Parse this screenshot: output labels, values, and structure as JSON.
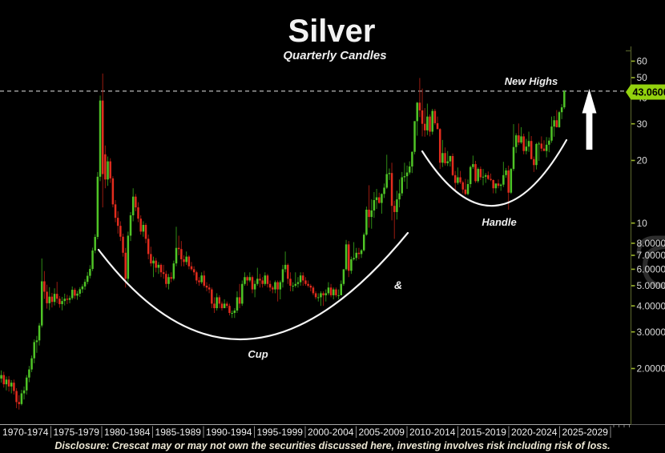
{
  "title": "Silver",
  "subtitle": "Quarterly Candles",
  "annotations": {
    "new_highs": "New Highs",
    "cup": "Cup",
    "ampersand": "&",
    "handle": "Handle"
  },
  "price_tag": {
    "value": "43.0600"
  },
  "disclosure": "Disclosure: Crescat may or may not own the securities discussed here, investing involves risk including risk of loss.",
  "colors": {
    "background": "#000000",
    "up": "#4fc426",
    "down": "#e22c1d",
    "up_wick": "#2f8c16",
    "down_wick": "#9a1b10",
    "price_tag": "#93d20e",
    "axis_tick": "#9ab32a",
    "axis_line": "#4a5424",
    "axis_text": "#d9d9d9",
    "x_text": "#f0f0f0",
    "dashed_line": "#e8e8e8"
  },
  "y_axis": {
    "ticks": [
      {
        "label": "60",
        "price": 60
      },
      {
        "label": "50",
        "price": 50
      },
      {
        "label": "40",
        "price": 40
      },
      {
        "label": "30",
        "price": 30
      },
      {
        "label": "20",
        "price": 20
      },
      {
        "label": "10",
        "price": 10
      },
      {
        "label": "8.0000",
        "price": 8
      },
      {
        "label": "7.0000",
        "price": 7
      },
      {
        "label": "6.0000",
        "price": 6
      },
      {
        "label": "5.0000",
        "price": 5
      },
      {
        "label": "4.0000",
        "price": 4
      },
      {
        "label": "3.0000",
        "price": 3
      },
      {
        "label": "2.0000",
        "price": 2
      }
    ]
  },
  "x_axis": {
    "labels": [
      "1970-1974",
      "1975-1979",
      "1980-1984",
      "1985-1989",
      "1990-1994",
      "1995-1999",
      "2000-2004",
      "2005-2009",
      "2010-2014",
      "2015-2019",
      "2020-2024",
      "2025-2029"
    ]
  },
  "chart_data": {
    "type": "candlestick",
    "timeframe": "quarterly",
    "scale": "log",
    "start": "1970-Q1",
    "end": "2025-Q3",
    "last_price": 43.06,
    "resistance_price": 43.06,
    "ylim": [
      1.27,
      60
    ],
    "ohlc": [
      [
        1.79,
        1.96,
        1.71,
        1.86
      ],
      [
        1.86,
        1.93,
        1.62,
        1.68
      ],
      [
        1.68,
        1.83,
        1.57,
        1.77
      ],
      [
        1.77,
        1.84,
        1.55,
        1.64
      ],
      [
        1.64,
        1.76,
        1.52,
        1.71
      ],
      [
        1.71,
        1.77,
        1.5,
        1.56
      ],
      [
        1.56,
        1.61,
        1.29,
        1.38
      ],
      [
        1.38,
        1.49,
        1.27,
        1.35
      ],
      [
        1.35,
        1.58,
        1.33,
        1.52
      ],
      [
        1.52,
        1.64,
        1.42,
        1.57
      ],
      [
        1.57,
        1.86,
        1.5,
        1.81
      ],
      [
        1.81,
        2.06,
        1.72,
        1.98
      ],
      [
        1.98,
        2.31,
        1.92,
        2.24
      ],
      [
        2.24,
        2.76,
        2.12,
        2.68
      ],
      [
        2.68,
        2.87,
        2.38,
        2.73
      ],
      [
        2.73,
        3.31,
        2.58,
        3.22
      ],
      [
        3.22,
        6.76,
        3.15,
        5.25
      ],
      [
        5.25,
        5.88,
        4.32,
        4.68
      ],
      [
        4.68,
        5.06,
        3.88,
        4.12
      ],
      [
        4.12,
        4.92,
        3.82,
        4.43
      ],
      [
        4.43,
        4.62,
        3.93,
        4.18
      ],
      [
        4.18,
        4.86,
        4.02,
        4.57
      ],
      [
        4.57,
        5.22,
        4.12,
        4.33
      ],
      [
        4.33,
        4.46,
        3.92,
        4.08
      ],
      [
        4.08,
        4.42,
        3.81,
        4.22
      ],
      [
        4.22,
        4.58,
        4.02,
        4.33
      ],
      [
        4.33,
        4.52,
        4.08,
        4.28
      ],
      [
        4.28,
        4.48,
        4.12,
        4.36
      ],
      [
        4.36,
        4.96,
        4.28,
        4.78
      ],
      [
        4.78,
        4.88,
        4.32,
        4.48
      ],
      [
        4.48,
        4.72,
        4.28,
        4.58
      ],
      [
        4.58,
        4.92,
        4.42,
        4.81
      ],
      [
        4.81,
        5.08,
        4.62,
        4.96
      ],
      [
        4.96,
        5.38,
        4.78,
        5.22
      ],
      [
        5.22,
        5.82,
        5.08,
        5.58
      ],
      [
        5.58,
        6.28,
        5.42,
        6.02
      ],
      [
        6.02,
        7.62,
        5.88,
        7.38
      ],
      [
        7.38,
        8.84,
        7.16,
        8.58
      ],
      [
        8.58,
        17.6,
        8.36,
        16.7
      ],
      [
        16.7,
        41.0,
        15.9,
        38.8
      ],
      [
        38.8,
        52.3,
        11.9,
        17.2
      ],
      [
        21.4,
        23.6,
        14.7,
        16.2
      ],
      [
        16.2,
        20.9,
        15.1,
        19.8
      ],
      [
        19.8,
        20.5,
        15.6,
        16.4
      ],
      [
        16.4,
        16.8,
        11.9,
        12.3
      ],
      [
        12.3,
        12.9,
        10.1,
        10.6
      ],
      [
        10.6,
        11.4,
        8.9,
        9.7
      ],
      [
        9.7,
        10.2,
        8.2,
        8.6
      ],
      [
        8.6,
        8.9,
        6.9,
        7.2
      ],
      [
        7.2,
        7.6,
        4.9,
        5.4
      ],
      [
        5.4,
        9.1,
        5.2,
        8.7
      ],
      [
        8.7,
        11.3,
        8.2,
        10.9
      ],
      [
        10.9,
        14.7,
        10.2,
        13.4
      ],
      [
        13.4,
        13.8,
        11.4,
        11.9
      ],
      [
        11.9,
        12.6,
        10.1,
        10.5
      ],
      [
        10.5,
        10.9,
        8.8,
        9.1
      ],
      [
        9.1,
        10.2,
        8.6,
        9.8
      ],
      [
        9.8,
        10.0,
        8.0,
        8.4
      ],
      [
        8.4,
        8.8,
        6.7,
        7.1
      ],
      [
        7.1,
        7.7,
        6.2,
        6.4
      ],
      [
        6.4,
        6.9,
        5.5,
        6.6
      ],
      [
        6.6,
        6.8,
        5.8,
        6.1
      ],
      [
        6.1,
        6.5,
        5.7,
        6.3
      ],
      [
        6.3,
        6.4,
        5.5,
        5.8
      ],
      [
        5.8,
        6.3,
        5.4,
        5.7
      ],
      [
        5.7,
        5.9,
        4.9,
        5.1
      ],
      [
        5.1,
        5.7,
        4.8,
        5.5
      ],
      [
        5.5,
        5.8,
        5.2,
        5.4
      ],
      [
        5.4,
        6.6,
        5.3,
        6.4
      ],
      [
        6.4,
        9.6,
        6.2,
        7.6
      ],
      [
        7.6,
        8.7,
        7.0,
        7.5
      ],
      [
        7.5,
        8.2,
        6.2,
        6.7
      ],
      [
        6.7,
        7.0,
        6.2,
        6.5
      ],
      [
        6.5,
        7.3,
        6.3,
        6.9
      ],
      [
        6.9,
        7.0,
        6.0,
        6.2
      ],
      [
        6.2,
        6.5,
        5.9,
        6.0
      ],
      [
        6.0,
        6.2,
        5.6,
        5.8
      ],
      [
        5.8,
        5.9,
        5.1,
        5.3
      ],
      [
        5.3,
        5.5,
        5.0,
        5.2
      ],
      [
        5.2,
        5.8,
        5.1,
        5.6
      ],
      [
        5.6,
        5.9,
        4.9,
        5.0
      ],
      [
        5.0,
        5.2,
        4.7,
        4.9
      ],
      [
        4.9,
        5.1,
        4.6,
        4.8
      ],
      [
        4.8,
        4.9,
        3.9,
        4.1
      ],
      [
        4.1,
        4.4,
        3.7,
        3.9
      ],
      [
        3.9,
        4.6,
        3.8,
        4.4
      ],
      [
        4.4,
        4.5,
        3.9,
        4.1
      ],
      [
        4.1,
        4.2,
        3.8,
        3.9
      ],
      [
        3.9,
        4.3,
        3.9,
        4.1
      ],
      [
        4.1,
        4.2,
        3.9,
        4.0
      ],
      [
        4.0,
        4.1,
        3.6,
        3.7
      ],
      [
        3.7,
        3.8,
        3.5,
        3.7
      ],
      [
        3.7,
        3.9,
        3.5,
        3.8
      ],
      [
        3.8,
        4.7,
        3.7,
        4.4
      ],
      [
        4.4,
        5.1,
        3.9,
        4.1
      ],
      [
        4.1,
        5.3,
        4.0,
        5.1
      ],
      [
        5.1,
        5.8,
        5.0,
        5.5
      ],
      [
        5.5,
        5.6,
        5.0,
        5.3
      ],
      [
        5.3,
        5.8,
        5.2,
        5.5
      ],
      [
        5.5,
        5.6,
        4.6,
        4.8
      ],
      [
        4.8,
        5.3,
        4.4,
        5.1
      ],
      [
        5.1,
        6.1,
        5.0,
        5.4
      ],
      [
        5.4,
        5.7,
        4.9,
        5.3
      ],
      [
        5.3,
        5.5,
        4.9,
        5.1
      ],
      [
        5.1,
        5.8,
        5.0,
        5.6
      ],
      [
        5.6,
        5.7,
        4.9,
        5.1
      ],
      [
        5.1,
        5.3,
        4.7,
        4.9
      ],
      [
        4.9,
        5.0,
        4.6,
        4.8
      ],
      [
        4.8,
        5.3,
        4.6,
        5.2
      ],
      [
        5.2,
        5.3,
        4.2,
        4.8
      ],
      [
        4.8,
        5.3,
        4.3,
        5.2
      ],
      [
        5.2,
        6.3,
        4.9,
        6.0
      ],
      [
        6.0,
        7.3,
        5.8,
        6.3
      ],
      [
        6.3,
        6.4,
        5.1,
        5.4
      ],
      [
        5.4,
        5.8,
        4.7,
        5.0
      ],
      [
        5.0,
        5.2,
        4.7,
        5.0
      ],
      [
        5.0,
        5.8,
        4.9,
        5.1
      ],
      [
        5.1,
        5.5,
        4.9,
        5.2
      ],
      [
        5.2,
        5.8,
        5.0,
        5.6
      ],
      [
        5.6,
        5.8,
        5.0,
        5.3
      ],
      [
        5.3,
        5.5,
        5.0,
        5.1
      ],
      [
        5.1,
        5.3,
        4.9,
        5.0
      ],
      [
        5.0,
        5.1,
        4.7,
        4.9
      ],
      [
        4.9,
        5.0,
        4.5,
        4.6
      ],
      [
        4.6,
        4.7,
        4.3,
        4.4
      ],
      [
        4.4,
        4.6,
        4.2,
        4.4
      ],
      [
        4.4,
        4.7,
        4.0,
        4.6
      ],
      [
        4.6,
        4.7,
        4.0,
        4.5
      ],
      [
        4.5,
        4.8,
        4.2,
        4.6
      ],
      [
        4.6,
        5.2,
        4.5,
        4.9
      ],
      [
        4.9,
        5.1,
        4.4,
        4.5
      ],
      [
        4.5,
        4.9,
        4.3,
        4.8
      ],
      [
        4.8,
        4.9,
        4.4,
        4.5
      ],
      [
        4.5,
        4.8,
        4.3,
        4.5
      ],
      [
        4.5,
        5.3,
        4.5,
        5.1
      ],
      [
        5.1,
        6.0,
        5.0,
        6.0
      ],
      [
        6.0,
        8.3,
        5.9,
        7.9
      ],
      [
        7.9,
        8.2,
        5.5,
        5.9
      ],
      [
        5.9,
        6.9,
        5.7,
        6.7
      ],
      [
        6.7,
        8.1,
        6.6,
        6.8
      ],
      [
        6.8,
        7.6,
        6.6,
        7.2
      ],
      [
        7.2,
        7.6,
        6.7,
        7.1
      ],
      [
        7.1,
        7.5,
        6.8,
        7.4
      ],
      [
        7.4,
        9.0,
        7.3,
        8.8
      ],
      [
        8.8,
        12.0,
        8.7,
        11.6
      ],
      [
        11.6,
        15.2,
        9.5,
        10.7
      ],
      [
        10.7,
        13.0,
        9.4,
        11.5
      ],
      [
        11.5,
        14.1,
        10.6,
        12.9
      ],
      [
        12.9,
        14.6,
        11.7,
        13.3
      ],
      [
        13.3,
        14.0,
        12.4,
        12.5
      ],
      [
        12.5,
        13.9,
        11.1,
        13.8
      ],
      [
        13.8,
        15.5,
        13.2,
        14.8
      ],
      [
        14.8,
        21.3,
        14.6,
        17.2
      ],
      [
        17.2,
        18.3,
        16.1,
        17.4
      ],
      [
        17.4,
        19.5,
        10.3,
        12.1
      ],
      [
        12.1,
        12.8,
        8.4,
        11.3
      ],
      [
        11.3,
        14.3,
        10.4,
        13.0
      ],
      [
        13.0,
        16.2,
        11.9,
        13.9
      ],
      [
        13.9,
        17.6,
        13.5,
        16.6
      ],
      [
        16.6,
        19.5,
        15.8,
        16.8
      ],
      [
        16.8,
        18.9,
        14.6,
        17.5
      ],
      [
        17.5,
        19.8,
        17.1,
        18.7
      ],
      [
        18.7,
        22.1,
        17.4,
        22.0
      ],
      [
        22.0,
        30.9,
        21.4,
        30.9
      ],
      [
        30.9,
        38.2,
        26.3,
        37.9
      ],
      [
        37.9,
        49.8,
        32.3,
        34.8
      ],
      [
        34.8,
        44.3,
        26.1,
        30.0
      ],
      [
        30.0,
        35.7,
        26.0,
        27.9
      ],
      [
        27.9,
        37.5,
        26.5,
        32.5
      ],
      [
        32.5,
        33.3,
        26.1,
        27.5
      ],
      [
        27.5,
        35.4,
        26.6,
        34.6
      ],
      [
        34.6,
        35.4,
        29.6,
        30.2
      ],
      [
        30.2,
        32.5,
        28.2,
        28.3
      ],
      [
        28.3,
        28.6,
        18.2,
        19.5
      ],
      [
        19.5,
        25.1,
        18.6,
        21.7
      ],
      [
        21.7,
        23.1,
        18.9,
        19.4
      ],
      [
        19.4,
        22.2,
        18.8,
        19.8
      ],
      [
        19.8,
        21.1,
        18.7,
        21.0
      ],
      [
        21.0,
        21.6,
        16.8,
        17.0
      ],
      [
        17.0,
        17.8,
        14.2,
        15.6
      ],
      [
        15.6,
        18.5,
        15.3,
        16.6
      ],
      [
        16.6,
        17.8,
        15.4,
        15.7
      ],
      [
        15.7,
        16.0,
        13.9,
        14.5
      ],
      [
        14.5,
        16.3,
        13.6,
        13.8
      ],
      [
        13.8,
        16.2,
        13.6,
        15.4
      ],
      [
        15.4,
        18.9,
        14.8,
        18.6
      ],
      [
        18.6,
        21.1,
        18.2,
        19.2
      ],
      [
        19.2,
        19.9,
        15.6,
        15.9
      ],
      [
        15.9,
        18.5,
        15.6,
        18.2
      ],
      [
        18.2,
        18.7,
        16.1,
        16.6
      ],
      [
        16.6,
        18.2,
        15.2,
        16.7
      ],
      [
        16.7,
        17.4,
        15.6,
        17.0
      ],
      [
        17.0,
        17.7,
        16.1,
        16.3
      ],
      [
        16.3,
        17.3,
        15.9,
        16.1
      ],
      [
        16.1,
        16.2,
        13.9,
        14.7
      ],
      [
        14.7,
        15.5,
        13.9,
        15.5
      ],
      [
        15.5,
        16.2,
        14.7,
        15.1
      ],
      [
        15.1,
        15.5,
        14.3,
        15.3
      ],
      [
        15.3,
        19.7,
        14.9,
        17.0
      ],
      [
        17.0,
        18.4,
        16.5,
        17.9
      ],
      [
        17.9,
        18.9,
        11.6,
        14.0
      ],
      [
        14.0,
        18.4,
        13.8,
        18.2
      ],
      [
        18.2,
        29.9,
        17.8,
        23.2
      ],
      [
        23.2,
        27.0,
        21.7,
        26.4
      ],
      [
        26.4,
        30.1,
        23.7,
        24.4
      ],
      [
        24.4,
        28.9,
        24.0,
        26.1
      ],
      [
        26.1,
        26.9,
        21.4,
        22.2
      ],
      [
        22.2,
        25.4,
        21.4,
        23.3
      ],
      [
        23.3,
        27.5,
        22.0,
        24.8
      ],
      [
        24.8,
        26.2,
        20.2,
        20.3
      ],
      [
        20.3,
        20.9,
        17.6,
        19.0
      ],
      [
        19.0,
        24.3,
        18.1,
        24.0
      ],
      [
        24.0,
        24.6,
        19.9,
        24.1
      ],
      [
        24.1,
        26.1,
        22.1,
        22.8
      ],
      [
        22.8,
        25.0,
        22.3,
        22.2
      ],
      [
        22.2,
        25.9,
        20.7,
        23.8
      ],
      [
        23.8,
        25.8,
        21.9,
        24.9
      ],
      [
        24.9,
        32.5,
        24.3,
        29.1
      ],
      [
        29.1,
        32.7,
        26.0,
        31.2
      ],
      [
        31.2,
        34.9,
        28.8,
        28.9
      ],
      [
        28.9,
        34.6,
        28.7,
        34.1
      ],
      [
        34.1,
        37.3,
        31.6,
        36.0
      ],
      [
        36.0,
        43.6,
        35.3,
        43.06
      ]
    ]
  }
}
